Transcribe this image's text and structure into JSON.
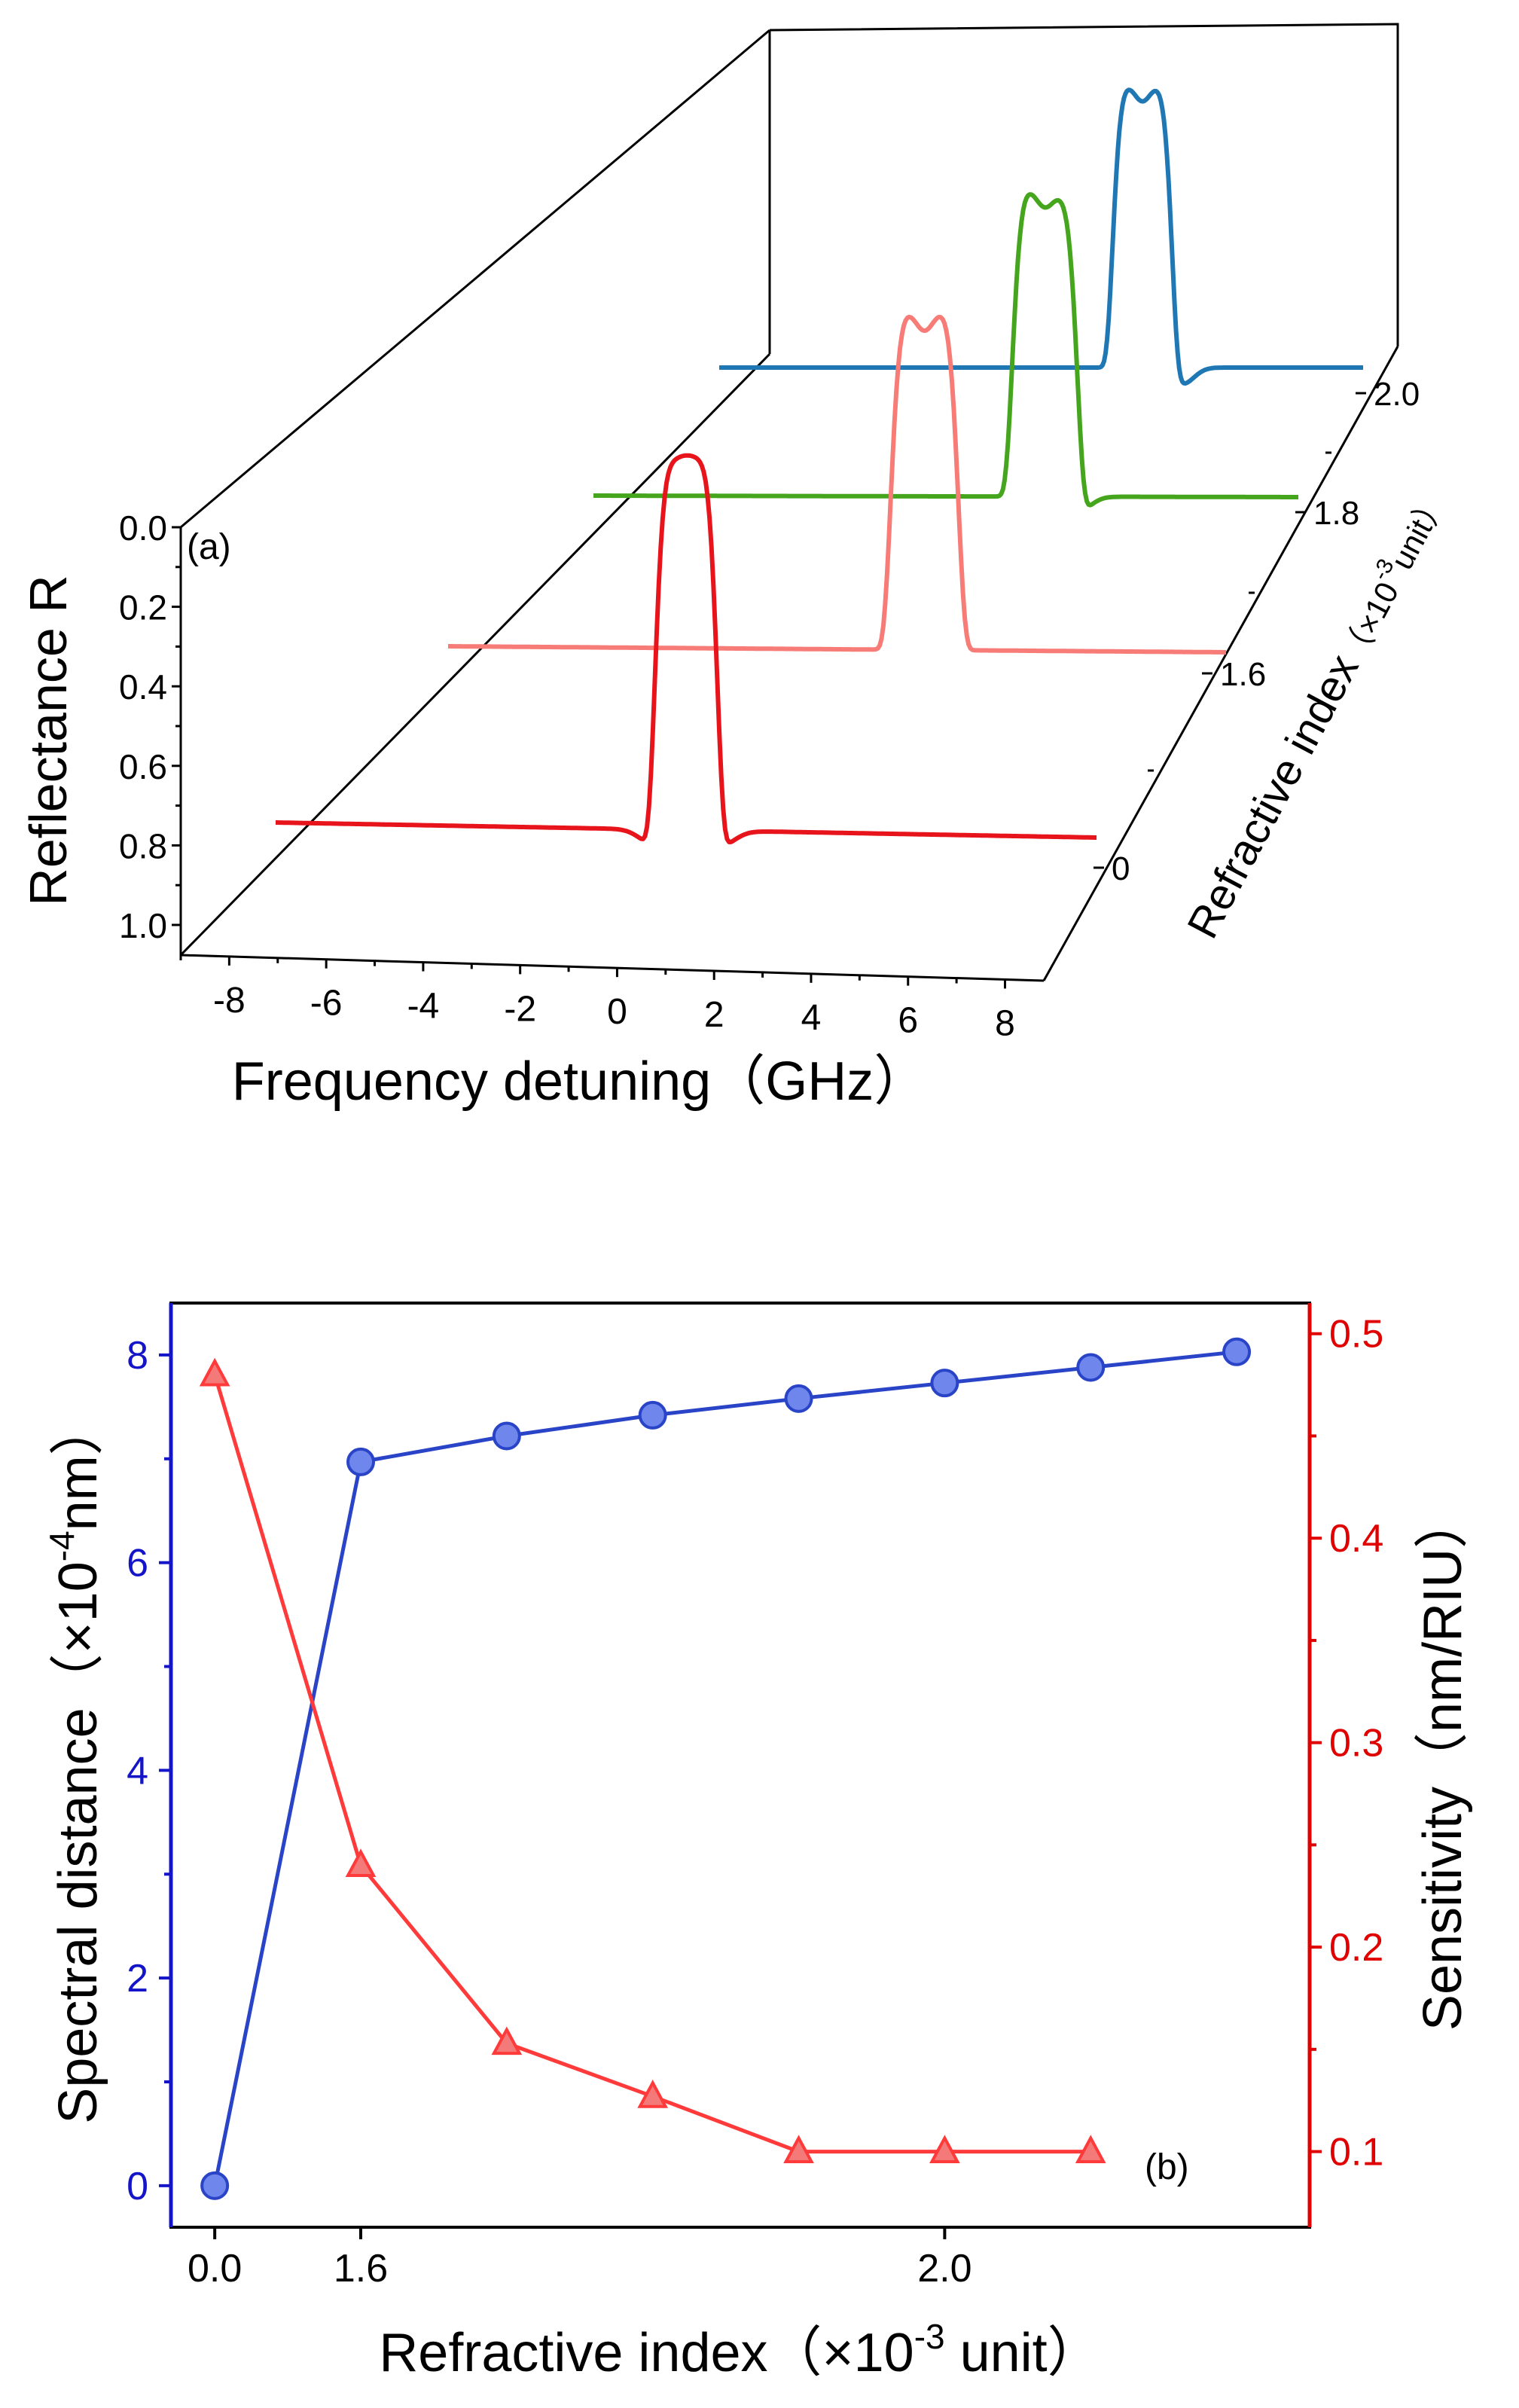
{
  "chart_data": [
    {
      "panel": "(a)",
      "type": "line",
      "style": "3d-waterfall",
      "title": "",
      "xlabel": "Frequency detuning（GHz）",
      "ylabel": "Reflectance R",
      "zlabel_main": "Refractive index",
      "zlabel_unit": "（×10",
      "zlabel_exp": "-3",
      "zlabel_unit_tail": "unit）",
      "x_ticks": [
        "-8",
        "-6",
        "-4",
        "-2",
        "0",
        "2",
        "4",
        "6",
        "8"
      ],
      "y_ticks": [
        "0.0",
        "0.2",
        "0.4",
        "0.6",
        "0.8",
        "1.0"
      ],
      "z_ticks": [
        "0",
        "1.6",
        "1.8",
        "2.0"
      ],
      "xlim": [
        -9,
        8.8
      ],
      "ylim": [
        0.0,
        1.0
      ],
      "series": [
        {
          "name": "0",
          "color": "#e8141b",
          "peak_center": -0.1,
          "peak_reflectance": 1.0,
          "peak_fwhm": 1.4,
          "dips": [
            -0.75,
            0.6
          ],
          "split": 0.0
        },
        {
          "name": "1.6",
          "color": "#f77b77",
          "peak_center": 1.9,
          "peak_reflectance": 1.0,
          "peak_fwhm": 1.6,
          "dips": [],
          "split": 0.25
        },
        {
          "name": "1.8",
          "color": "#45a51c",
          "peak_center": 2.4,
          "peak_reflectance": 1.0,
          "peak_fwhm": 1.7,
          "dips": [
            3.2
          ],
          "split": 0.25
        },
        {
          "name": "2.0",
          "color": "#1f77b4",
          "peak_center": 2.7,
          "peak_reflectance": 1.0,
          "peak_fwhm": 1.7,
          "dips": [
            3.8
          ],
          "split": 0.25
        }
      ]
    },
    {
      "panel": "(b)",
      "type": "line",
      "title": "",
      "xlabel": "Refractive index（×10",
      "xlabel_exp": "-3",
      "xlabel_tail": " unit）",
      "ylabel_left": "Spectral distance（×10",
      "ylabel_left_exp": "-4",
      "ylabel_left_tail": "nm）",
      "ylabel_right": "Sensitivity（nm/RIU）",
      "x_ticks": [
        "0.0",
        "1.6",
        "2.0"
      ],
      "x_tick_positions": [
        0,
        1,
        5
      ],
      "y_left_ticks": [
        "0",
        "2",
        "4",
        "6",
        "8"
      ],
      "y_right_ticks": [
        "0.1",
        "0.2",
        "0.3",
        "0.4",
        "0.5"
      ],
      "xlim": [
        -0.3,
        7.5
      ],
      "ylim_left": [
        -0.4,
        8.5
      ],
      "ylim_right": [
        0.063,
        0.515
      ],
      "series": [
        {
          "name": "Spectral distance",
          "axis": "left",
          "marker": "circle",
          "color": "#2a44c8",
          "fill": "#6f86ec",
          "x": [
            0,
            1,
            2,
            3,
            4,
            5,
            6,
            7
          ],
          "values": [
            0.0,
            6.97,
            7.22,
            7.42,
            7.58,
            7.73,
            7.88,
            8.03
          ]
        },
        {
          "name": "Sensitivity",
          "axis": "right",
          "marker": "triangle",
          "color": "#ff3a3a",
          "fill": "#f47a7a",
          "x": [
            0,
            1,
            2,
            3,
            4,
            5,
            6
          ],
          "values": [
            0.48,
            0.24,
            0.153,
            0.127,
            0.1,
            0.1,
            0.1
          ]
        }
      ]
    }
  ]
}
